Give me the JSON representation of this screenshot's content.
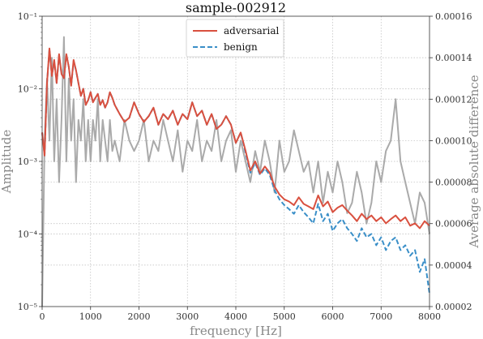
{
  "chart_data": {
    "type": "line",
    "title": "sample-002912",
    "xlabel": "frequency [Hz]",
    "ylabel": "Amplitude",
    "y2label": "Average absolute difference",
    "xlim": [
      0,
      8000
    ],
    "ylim": [
      1e-05,
      0.1
    ],
    "yscale": "log",
    "y2lim": [
      2e-05,
      0.00016
    ],
    "grid": true,
    "legend_position": "top-center",
    "x_ticks": [
      0,
      1000,
      2000,
      3000,
      4000,
      5000,
      6000,
      7000,
      8000
    ],
    "y_ticks": [
      1e-05,
      0.0001,
      0.001,
      0.01,
      0.1
    ],
    "y_tick_labels": [
      "10⁻⁵",
      "10⁻⁴",
      "10⁻³",
      "10⁻²",
      "10⁻¹"
    ],
    "y2_ticks": [
      2e-05,
      4e-05,
      6e-05,
      8e-05,
      0.0001,
      0.00012,
      0.00014,
      0.00016
    ],
    "y2_tick_labels": [
      "0.00002",
      "0.00004",
      "0.00006",
      "0.00008",
      "0.00010",
      "0.00012",
      "0.00014",
      "0.00016"
    ],
    "series": [
      {
        "name": "adversarial",
        "color": "#d9503f",
        "style": "solid",
        "axis": "left",
        "x": [
          0,
          50,
          100,
          150,
          200,
          250,
          300,
          350,
          400,
          450,
          500,
          550,
          600,
          650,
          700,
          750,
          800,
          850,
          900,
          950,
          1000,
          1050,
          1100,
          1150,
          1200,
          1250,
          1300,
          1350,
          1400,
          1450,
          1500,
          1600,
          1700,
          1800,
          1900,
          2000,
          2100,
          2200,
          2300,
          2400,
          2500,
          2600,
          2700,
          2800,
          2900,
          3000,
          3100,
          3200,
          3300,
          3400,
          3500,
          3600,
          3700,
          3800,
          3900,
          4000,
          4100,
          4200,
          4300,
          4400,
          4500,
          4600,
          4700,
          4800,
          4900,
          5000,
          5100,
          5200,
          5300,
          5400,
          5500,
          5600,
          5700,
          5800,
          5900,
          6000,
          6100,
          6200,
          6300,
          6400,
          6500,
          6600,
          6700,
          6800,
          6900,
          7000,
          7100,
          7200,
          7300,
          7400,
          7500,
          7600,
          7700,
          7800,
          7900,
          8000
        ],
        "y": [
          0.0025,
          0.0012,
          0.012,
          0.036,
          0.015,
          0.025,
          0.012,
          0.03,
          0.016,
          0.014,
          0.03,
          0.02,
          0.011,
          0.025,
          0.018,
          0.012,
          0.008,
          0.01,
          0.006,
          0.007,
          0.009,
          0.0065,
          0.0075,
          0.0085,
          0.006,
          0.007,
          0.0055,
          0.0065,
          0.009,
          0.0075,
          0.006,
          0.0045,
          0.0035,
          0.004,
          0.0065,
          0.0045,
          0.0035,
          0.0042,
          0.0055,
          0.0032,
          0.0045,
          0.0038,
          0.005,
          0.0032,
          0.0045,
          0.0038,
          0.0065,
          0.0042,
          0.005,
          0.0032,
          0.0045,
          0.0028,
          0.0032,
          0.0042,
          0.0032,
          0.0018,
          0.0025,
          0.0014,
          0.00075,
          0.001,
          0.00068,
          0.00085,
          0.0007,
          0.00045,
          0.00035,
          0.0003,
          0.00028,
          0.00025,
          0.00032,
          0.00026,
          0.00024,
          0.00022,
          0.00034,
          0.00024,
          0.00028,
          0.0002,
          0.00023,
          0.00025,
          0.00021,
          0.00018,
          0.00015,
          0.00019,
          0.00016,
          0.00018,
          0.00015,
          0.00017,
          0.00014,
          0.00016,
          0.00018,
          0.00015,
          0.00017,
          0.00013,
          0.00014,
          0.00012,
          0.00015,
          0.00013
        ]
      },
      {
        "name": "benign",
        "color": "#3a8fc8",
        "style": "dashed",
        "axis": "left",
        "x": [
          0,
          50,
          100,
          150,
          200,
          250,
          300,
          350,
          400,
          450,
          500,
          550,
          600,
          650,
          700,
          750,
          800,
          850,
          900,
          950,
          1000,
          1050,
          1100,
          1150,
          1200,
          1250,
          1300,
          1350,
          1400,
          1450,
          1500,
          1600,
          1700,
          1800,
          1900,
          2000,
          2100,
          2200,
          2300,
          2400,
          2500,
          2600,
          2700,
          2800,
          2900,
          3000,
          3100,
          3200,
          3300,
          3400,
          3500,
          3600,
          3700,
          3800,
          3900,
          4000,
          4100,
          4200,
          4300,
          4400,
          4500,
          4600,
          4700,
          4800,
          4900,
          5000,
          5100,
          5200,
          5300,
          5400,
          5500,
          5600,
          5700,
          5800,
          5900,
          6000,
          6100,
          6200,
          6300,
          6400,
          6500,
          6600,
          6700,
          6800,
          6900,
          7000,
          7100,
          7200,
          7300,
          7400,
          7500,
          7600,
          7700,
          7800,
          7900,
          8000
        ],
        "y": [
          0.0025,
          0.0012,
          0.012,
          0.035,
          0.015,
          0.024,
          0.012,
          0.029,
          0.016,
          0.014,
          0.029,
          0.02,
          0.011,
          0.024,
          0.018,
          0.012,
          0.008,
          0.01,
          0.006,
          0.007,
          0.009,
          0.0065,
          0.0075,
          0.0085,
          0.006,
          0.007,
          0.0055,
          0.0065,
          0.009,
          0.0075,
          0.006,
          0.0045,
          0.0035,
          0.004,
          0.0065,
          0.0045,
          0.0035,
          0.0042,
          0.0055,
          0.0032,
          0.0045,
          0.0038,
          0.005,
          0.0032,
          0.0045,
          0.0038,
          0.0065,
          0.0042,
          0.005,
          0.0032,
          0.0045,
          0.0028,
          0.0032,
          0.0042,
          0.0032,
          0.0018,
          0.0025,
          0.0013,
          0.0007,
          0.00095,
          0.00065,
          0.0008,
          0.00065,
          0.0004,
          0.0003,
          0.00025,
          0.00022,
          0.00019,
          0.00025,
          0.0002,
          0.00017,
          0.00014,
          0.00026,
          0.00015,
          0.00019,
          0.00011,
          0.00014,
          0.00016,
          0.00012,
          0.0001,
          8e-05,
          0.00012,
          9e-05,
          0.0001,
          7e-05,
          9e-05,
          6e-05,
          8e-05,
          9e-05,
          6e-05,
          7e-05,
          5e-05,
          6e-05,
          3e-05,
          4.5e-05,
          1.5e-05
        ]
      },
      {
        "name": "Average absolute difference",
        "color": "#aaaaaa",
        "style": "solid",
        "axis": "right",
        "x": [
          0,
          50,
          100,
          150,
          200,
          250,
          300,
          350,
          400,
          450,
          500,
          550,
          600,
          650,
          700,
          750,
          800,
          850,
          900,
          950,
          1000,
          1050,
          1100,
          1150,
          1200,
          1250,
          1300,
          1350,
          1400,
          1450,
          1500,
          1600,
          1700,
          1800,
          1900,
          2000,
          2100,
          2200,
          2300,
          2400,
          2500,
          2600,
          2700,
          2800,
          2900,
          3000,
          3100,
          3200,
          3300,
          3400,
          3500,
          3600,
          3700,
          3800,
          3900,
          4000,
          4100,
          4200,
          4300,
          4400,
          4500,
          4600,
          4700,
          4800,
          4900,
          5000,
          5100,
          5200,
          5300,
          5400,
          5500,
          5600,
          5700,
          5800,
          5900,
          6000,
          6100,
          6200,
          6300,
          6400,
          6500,
          6600,
          6700,
          6800,
          6900,
          7000,
          7100,
          7200,
          7300,
          7400,
          7500,
          7600,
          7700,
          7800,
          7900,
          8000
        ],
        "y": [
          2e-05,
          0.0001,
          0.00013,
          0.0001,
          0.00014,
          9e-05,
          0.00012,
          8e-05,
          0.00011,
          0.00015,
          9e-05,
          0.00013,
          0.0001,
          0.00012,
          8e-05,
          0.00011,
          0.0001,
          0.00012,
          9e-05,
          0.00011,
          9e-05,
          0.00011,
          0.0001,
          0.00012,
          9e-05,
          0.00011,
          0.0001,
          9e-05,
          0.00011,
          9.5e-05,
          0.0001,
          9e-05,
          0.00011,
          0.0001,
          9.5e-05,
          0.0001,
          0.00011,
          9e-05,
          0.0001,
          9.5e-05,
          0.00011,
          0.0001,
          9e-05,
          0.000105,
          8.5e-05,
          0.0001,
          9.5e-05,
          0.00011,
          9e-05,
          0.0001,
          9.5e-05,
          0.00011,
          9e-05,
          0.0001,
          0.000105,
          8.5e-05,
          0.0001,
          9e-05,
          8e-05,
          9.5e-05,
          8.5e-05,
          0.0001,
          9e-05,
          7.5e-05,
          0.0001,
          8.5e-05,
          9e-05,
          0.000105,
          9.5e-05,
          8.5e-05,
          9e-05,
          7.5e-05,
          9e-05,
          7e-05,
          8.5e-05,
          7.5e-05,
          9e-05,
          8e-05,
          6.5e-05,
          7e-05,
          8.5e-05,
          7.5e-05,
          6e-05,
          7e-05,
          9e-05,
          8e-05,
          9.5e-05,
          0.0001,
          0.00012,
          9e-05,
          8e-05,
          7e-05,
          6e-05,
          7.5e-05,
          7e-05,
          5.5e-05
        ]
      }
    ]
  }
}
